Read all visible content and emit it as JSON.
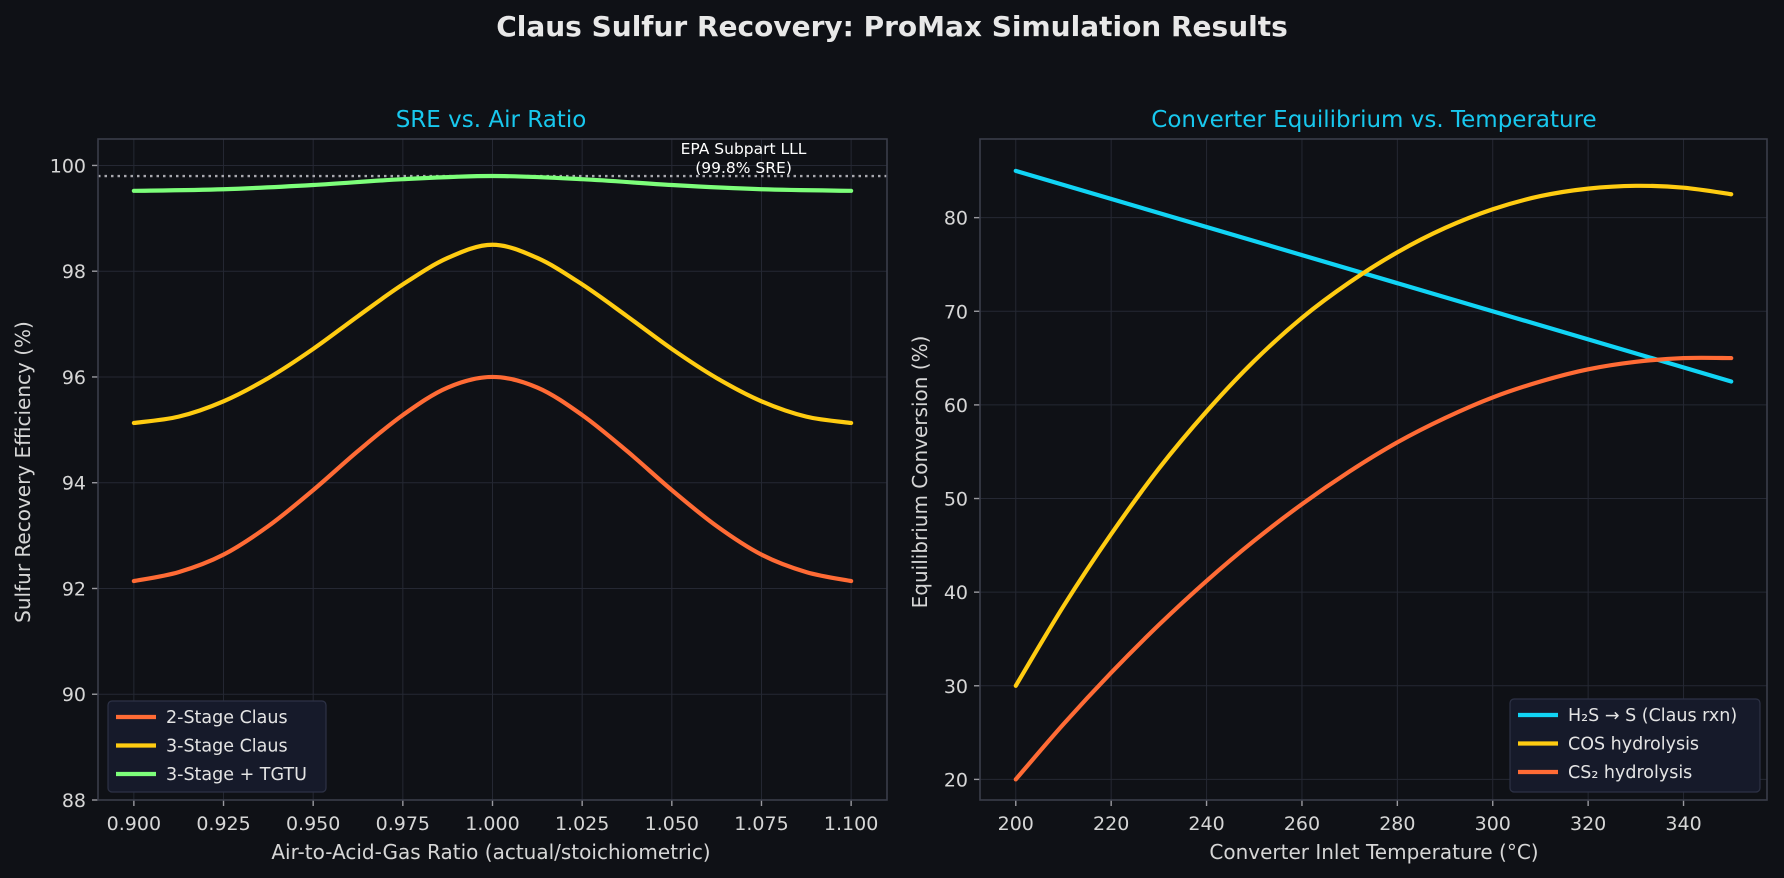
{
  "figure_title": "Claus Sulfur Recovery: ProMax Simulation Results",
  "chart_data": [
    {
      "type": "line",
      "title": "SRE vs. Air Ratio",
      "xlabel": "Air-to-Acid-Gas Ratio (actual/stoichiometric)",
      "ylabel": "Sulfur Recovery Efficiency (%)",
      "xlim": [
        0.89,
        1.11
      ],
      "ylim": [
        88,
        100.5
      ],
      "xticks": [
        0.9,
        0.925,
        0.95,
        0.975,
        1.0,
        1.025,
        1.05,
        1.075,
        1.1
      ],
      "xtick_labels": [
        "0.900",
        "0.925",
        "0.950",
        "0.975",
        "1.000",
        "1.025",
        "1.050",
        "1.075",
        "1.100"
      ],
      "yticks": [
        88,
        90,
        92,
        94,
        96,
        98,
        100
      ],
      "ytick_labels": [
        "88",
        "90",
        "92",
        "94",
        "96",
        "98",
        "100"
      ],
      "grid": true,
      "legend_position": "lower-left",
      "series": [
        {
          "name": "2-Stage Claus",
          "color": "#ff6b35",
          "x": [
            0.9,
            0.9125,
            0.925,
            0.9375,
            0.95,
            0.9625,
            0.975,
            0.9875,
            1.0,
            1.0125,
            1.025,
            1.0375,
            1.05,
            1.0625,
            1.075,
            1.0875,
            1.1
          ],
          "y": [
            92.14,
            92.31,
            92.64,
            93.18,
            93.86,
            94.6,
            95.28,
            95.8,
            96.0,
            95.8,
            95.28,
            94.6,
            93.86,
            93.18,
            92.64,
            92.31,
            92.14
          ]
        },
        {
          "name": "3-Stage Claus",
          "color": "#ffcc11",
          "x": [
            0.9,
            0.9125,
            0.925,
            0.9375,
            0.95,
            0.9625,
            0.975,
            0.9875,
            1.0,
            1.0125,
            1.025,
            1.0375,
            1.05,
            1.0625,
            1.075,
            1.0875,
            1.1
          ],
          "y": [
            95.13,
            95.25,
            95.54,
            95.98,
            96.53,
            97.15,
            97.75,
            98.25,
            98.5,
            98.25,
            97.75,
            97.15,
            96.53,
            95.98,
            95.54,
            95.25,
            95.13
          ]
        },
        {
          "name": "3-Stage + TGTU",
          "color": "#7dff7a",
          "x": [
            0.9,
            0.925,
            0.95,
            0.975,
            1.0,
            1.025,
            1.05,
            1.075,
            1.1
          ],
          "y": [
            99.52,
            99.55,
            99.63,
            99.74,
            99.8,
            99.74,
            99.63,
            99.55,
            99.52
          ]
        }
      ],
      "reference_line": {
        "y": 99.8,
        "color": "#a8a8ae",
        "label_line1": "EPA Subpart LLL",
        "label_line2": "(99.8% SRE)",
        "label_x": 1.07
      }
    },
    {
      "type": "line",
      "title": "Converter Equilibrium vs. Temperature",
      "xlabel": "Converter Inlet Temperature (°C)",
      "ylabel": "Equilibrium Conversion (%)",
      "xlim": [
        192.5,
        357.5
      ],
      "ylim": [
        17.8,
        88.4
      ],
      "xticks": [
        200,
        220,
        240,
        260,
        280,
        300,
        320,
        340
      ],
      "xtick_labels": [
        "200",
        "220",
        "240",
        "260",
        "280",
        "300",
        "320",
        "340"
      ],
      "yticks": [
        20,
        30,
        40,
        50,
        60,
        70,
        80
      ],
      "ytick_labels": [
        "20",
        "30",
        "40",
        "50",
        "60",
        "70",
        "80"
      ],
      "grid": true,
      "legend_position": "lower-right",
      "series": [
        {
          "name": "H₂S → S (Claus rxn)",
          "color": "#11d4f5",
          "x": [
            200,
            350
          ],
          "y": [
            85,
            62.5
          ]
        },
        {
          "name": "COS hydrolysis",
          "color": "#ffcc11",
          "x": [
            200,
            210,
            220,
            230,
            240,
            250,
            260,
            270,
            280,
            290,
            300,
            310,
            320,
            330,
            340,
            350
          ],
          "y": [
            30.0,
            38.5,
            46.2,
            53.2,
            59.3,
            64.7,
            69.3,
            73.1,
            76.3,
            78.9,
            80.9,
            82.3,
            83.1,
            83.4,
            83.2,
            82.5
          ]
        },
        {
          "name": "CS₂ hydrolysis",
          "color": "#ff6b35",
          "x": [
            200,
            210,
            220,
            230,
            240,
            250,
            260,
            270,
            280,
            290,
            300,
            310,
            320,
            330,
            340,
            350
          ],
          "y": [
            20.0,
            25.9,
            31.4,
            36.5,
            41.2,
            45.5,
            49.4,
            52.9,
            56.0,
            58.6,
            60.8,
            62.5,
            63.8,
            64.6,
            65.0,
            65.0
          ]
        }
      ]
    }
  ]
}
